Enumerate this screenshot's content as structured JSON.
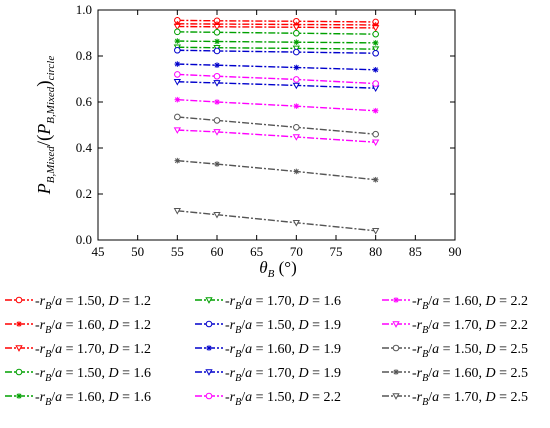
{
  "chart_data": {
    "type": "line",
    "xlim": [
      45,
      90
    ],
    "ylim": [
      0.0,
      1.0
    ],
    "x_ticks": [
      "45",
      "50",
      "55",
      "60",
      "65",
      "70",
      "75",
      "80",
      "85",
      "90"
    ],
    "y_ticks": [
      "0.0",
      "0.2",
      "0.4",
      "0.6",
      "0.8",
      "1.0"
    ],
    "x_values": [
      55,
      60,
      70,
      80
    ],
    "xlabel": {
      "main": "θ",
      "sub": "B",
      "unit": "(°)"
    },
    "ylabel": {
      "text": "P_B,Mixed / (P_B,Mixed)_circle"
    },
    "grid": false,
    "legend_placement": "below",
    "series": [
      {
        "name": "r_B/a = 1.50, D = 1.2",
        "r": "1.50",
        "D": "1.2",
        "color": "#ff0000",
        "marker": "circle",
        "y": [
          0.955,
          0.953,
          0.951,
          0.948
        ]
      },
      {
        "name": "r_B/a = 1.60, D = 1.2",
        "r": "1.60",
        "D": "1.2",
        "color": "#ff0000",
        "marker": "star",
        "y": [
          0.94,
          0.939,
          0.937,
          0.935
        ]
      },
      {
        "name": "r_B/a = 1.70, D = 1.2",
        "r": "1.70",
        "D": "1.2",
        "color": "#ff0000",
        "marker": "triangle",
        "y": [
          0.928,
          0.927,
          0.925,
          0.922
        ]
      },
      {
        "name": "r_B/a = 1.50, D = 1.6",
        "r": "1.50",
        "D": "1.6",
        "color": "#00a000",
        "marker": "circle",
        "y": [
          0.905,
          0.903,
          0.899,
          0.895
        ]
      },
      {
        "name": "r_B/a = 1.60, D = 1.6",
        "r": "1.60",
        "D": "1.6",
        "color": "#00a000",
        "marker": "star",
        "y": [
          0.865,
          0.863,
          0.86,
          0.857
        ]
      },
      {
        "name": "r_B/a = 1.70, D = 1.6",
        "r": "1.70",
        "D": "1.6",
        "color": "#00a000",
        "marker": "triangle",
        "y": [
          0.838,
          0.836,
          0.833,
          0.83
        ]
      },
      {
        "name": "r_B/a = 1.50, D = 1.9",
        "r": "1.50",
        "D": "1.9",
        "color": "#0000cc",
        "marker": "circle",
        "y": [
          0.825,
          0.822,
          0.817,
          0.812
        ]
      },
      {
        "name": "r_B/a = 1.60, D = 1.9",
        "r": "1.60",
        "D": "1.9",
        "color": "#0000cc",
        "marker": "star",
        "y": [
          0.765,
          0.76,
          0.75,
          0.74
        ]
      },
      {
        "name": "r_B/a = 1.70, D = 1.9",
        "r": "1.70",
        "D": "1.9",
        "color": "#0000cc",
        "marker": "triangle",
        "y": [
          0.688,
          0.683,
          0.672,
          0.66
        ]
      },
      {
        "name": "r_B/a = 1.50, D = 2.2",
        "r": "1.50",
        "D": "2.2",
        "color": "#ff00ff",
        "marker": "circle",
        "y": [
          0.72,
          0.712,
          0.698,
          0.68
        ]
      },
      {
        "name": "r_B/a = 1.60, D = 2.2",
        "r": "1.60",
        "D": "2.2",
        "color": "#ff00ff",
        "marker": "star",
        "y": [
          0.61,
          0.6,
          0.582,
          0.562
        ]
      },
      {
        "name": "r_B/a = 1.70, D = 2.2",
        "r": "1.70",
        "D": "2.2",
        "color": "#ff00ff",
        "marker": "triangle",
        "y": [
          0.478,
          0.47,
          0.448,
          0.425
        ]
      },
      {
        "name": "r_B/a = 1.50, D = 2.5",
        "r": "1.50",
        "D": "2.5",
        "color": "#555555",
        "marker": "circle",
        "y": [
          0.535,
          0.52,
          0.49,
          0.46
        ]
      },
      {
        "name": "r_B/a = 1.60, D = 2.5",
        "r": "1.60",
        "D": "2.5",
        "color": "#555555",
        "marker": "star",
        "y": [
          0.345,
          0.33,
          0.298,
          0.262
        ]
      },
      {
        "name": "r_B/a = 1.70, D = 2.5",
        "r": "1.70",
        "D": "2.5",
        "color": "#555555",
        "marker": "triangle",
        "y": [
          0.127,
          0.11,
          0.075,
          0.04
        ]
      }
    ]
  }
}
